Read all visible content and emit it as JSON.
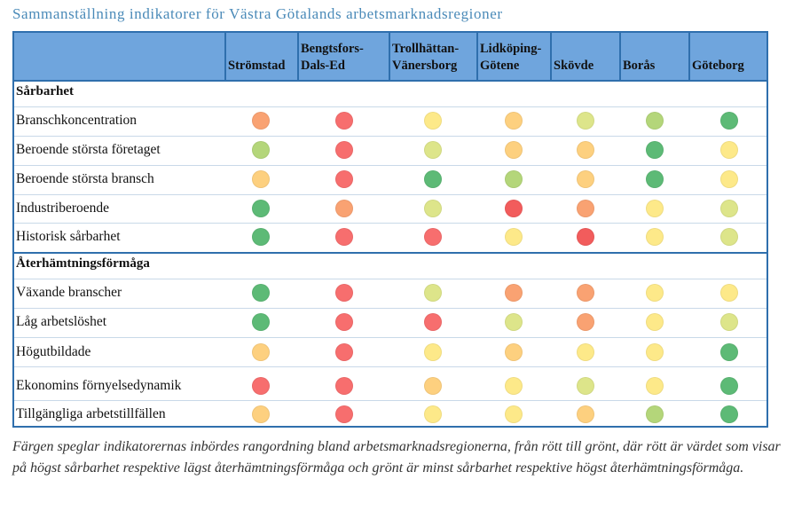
{
  "title": "Sammanställning indikatorer för Västra Götalands arbetsmarknadsregioner",
  "columns": [
    {
      "l1": "Strömstad",
      "l2": ""
    },
    {
      "l1": "Bengtsfors-",
      "l2": "Dals-Ed"
    },
    {
      "l1": "Trollhättan-",
      "l2": "Vänersborg"
    },
    {
      "l1": "Lidköping-",
      "l2": "Götene"
    },
    {
      "l1": "Skövde",
      "l2": ""
    },
    {
      "l1": "Borås",
      "l2": ""
    },
    {
      "l1": "Göteborg",
      "l2": ""
    }
  ],
  "sections": [
    {
      "name": "Sårbarhet",
      "rows": [
        {
          "label": "Branschkoncentration",
          "ratings": [
            "orange",
            "red",
            "yellow",
            "light-orange",
            "yellow-green",
            "light-green",
            "green"
          ]
        },
        {
          "label": "Beroende största företaget",
          "ratings": [
            "light-green",
            "red",
            "yellow-green",
            "light-orange",
            "light-orange",
            "green",
            "yellow"
          ]
        },
        {
          "label": "Beroende största bransch",
          "ratings": [
            "light-orange",
            "red",
            "green",
            "light-green",
            "light-orange",
            "green",
            "yellow"
          ]
        },
        {
          "label": "Industriberoende",
          "ratings": [
            "green",
            "orange",
            "yellow-green",
            "deep-red",
            "orange",
            "yellow",
            "yellow-green"
          ]
        },
        {
          "label": "Historisk sårbarhet",
          "ratings": [
            "green",
            "red",
            "red",
            "yellow",
            "deep-red",
            "yellow",
            "yellow-green"
          ]
        }
      ]
    },
    {
      "name": "Återhämtningsförmåga",
      "rows": [
        {
          "label": "Växande branscher",
          "ratings": [
            "green",
            "red",
            "yellow-green",
            "orange",
            "orange",
            "yellow",
            "yellow"
          ]
        },
        {
          "label": "Låg arbetslöshet",
          "ratings": [
            "green",
            "red",
            "red",
            "yellow-green",
            "orange",
            "yellow",
            "yellow-green"
          ]
        },
        {
          "label": "Högutbildade",
          "ratings": [
            "light-orange",
            "red",
            "yellow",
            "light-orange",
            "yellow",
            "yellow",
            "green"
          ]
        },
        {
          "label": "Ekonomins förnyelsedynamik",
          "ratings": [
            "red",
            "red",
            "light-orange",
            "yellow",
            "yellow-green",
            "yellow",
            "green"
          ]
        },
        {
          "label": "Tillgängliga arbetstillfällen",
          "ratings": [
            "light-orange",
            "red",
            "yellow",
            "yellow",
            "light-orange",
            "light-green",
            "green"
          ]
        }
      ]
    }
  ],
  "colors": {
    "green": "#5dba76",
    "light-green": "#b4d67a",
    "yellow-green": "#dde58a",
    "yellow": "#fde989",
    "light-orange": "#fdd07f",
    "orange": "#f9a272",
    "red": "#f76e6e",
    "deep-red": "#f25c5c",
    "header_bg": "#6fa5dd",
    "border": "#2f6fad",
    "title": "#4a8ab8"
  },
  "caption": "Färgen speglar indikatorernas inbördes rangordning bland arbetsmarknadsregionerna, från rött till grönt, där rött är värdet som visar på högst sårbarhet respektive lägst återhämtningsförmåga och grönt är minst sårbarhet respektive högst återhämtningsförmåga."
}
